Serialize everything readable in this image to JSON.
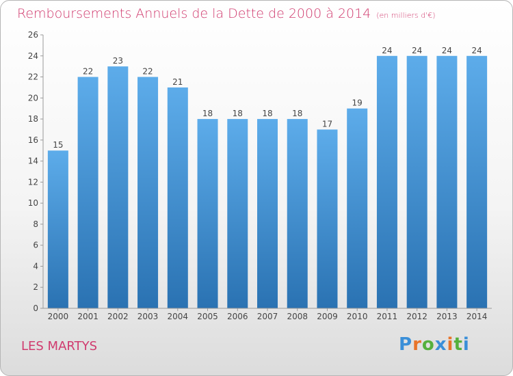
{
  "header": {
    "title": "Remboursements Annuels de la Dette de 2000 à 2014",
    "subtitle": "(en milliers d'€)"
  },
  "footer": {
    "commune": "LES MARTYS",
    "logo_text": "Proxiti",
    "logo_colors": [
      "#3a8fd8",
      "#e8742a",
      "#55b03d",
      "#3a8fd8",
      "#e8742a",
      "#55b03d",
      "#3a8fd8"
    ]
  },
  "chart_data": {
    "type": "bar",
    "title": "Remboursements Annuels de la Dette de 2000 à 2014",
    "subtitle": "(en milliers d'€)",
    "categories": [
      "2000",
      "2001",
      "2002",
      "2003",
      "2004",
      "2005",
      "2006",
      "2007",
      "2008",
      "2009",
      "2010",
      "2011",
      "2012",
      "2013",
      "2014"
    ],
    "values": [
      15,
      22,
      23,
      22,
      21,
      18,
      18,
      18,
      18,
      17,
      19,
      24,
      24,
      24,
      24
    ],
    "ylim": [
      0,
      26
    ],
    "yticks": [
      0,
      2,
      4,
      6,
      8,
      10,
      12,
      14,
      16,
      18,
      20,
      22,
      24,
      26
    ],
    "grid": false,
    "colors": {
      "bar_top": "#5aa9e6",
      "bar_bottom": "#2a74b4",
      "axis": "#888888",
      "label": "#444444"
    }
  }
}
